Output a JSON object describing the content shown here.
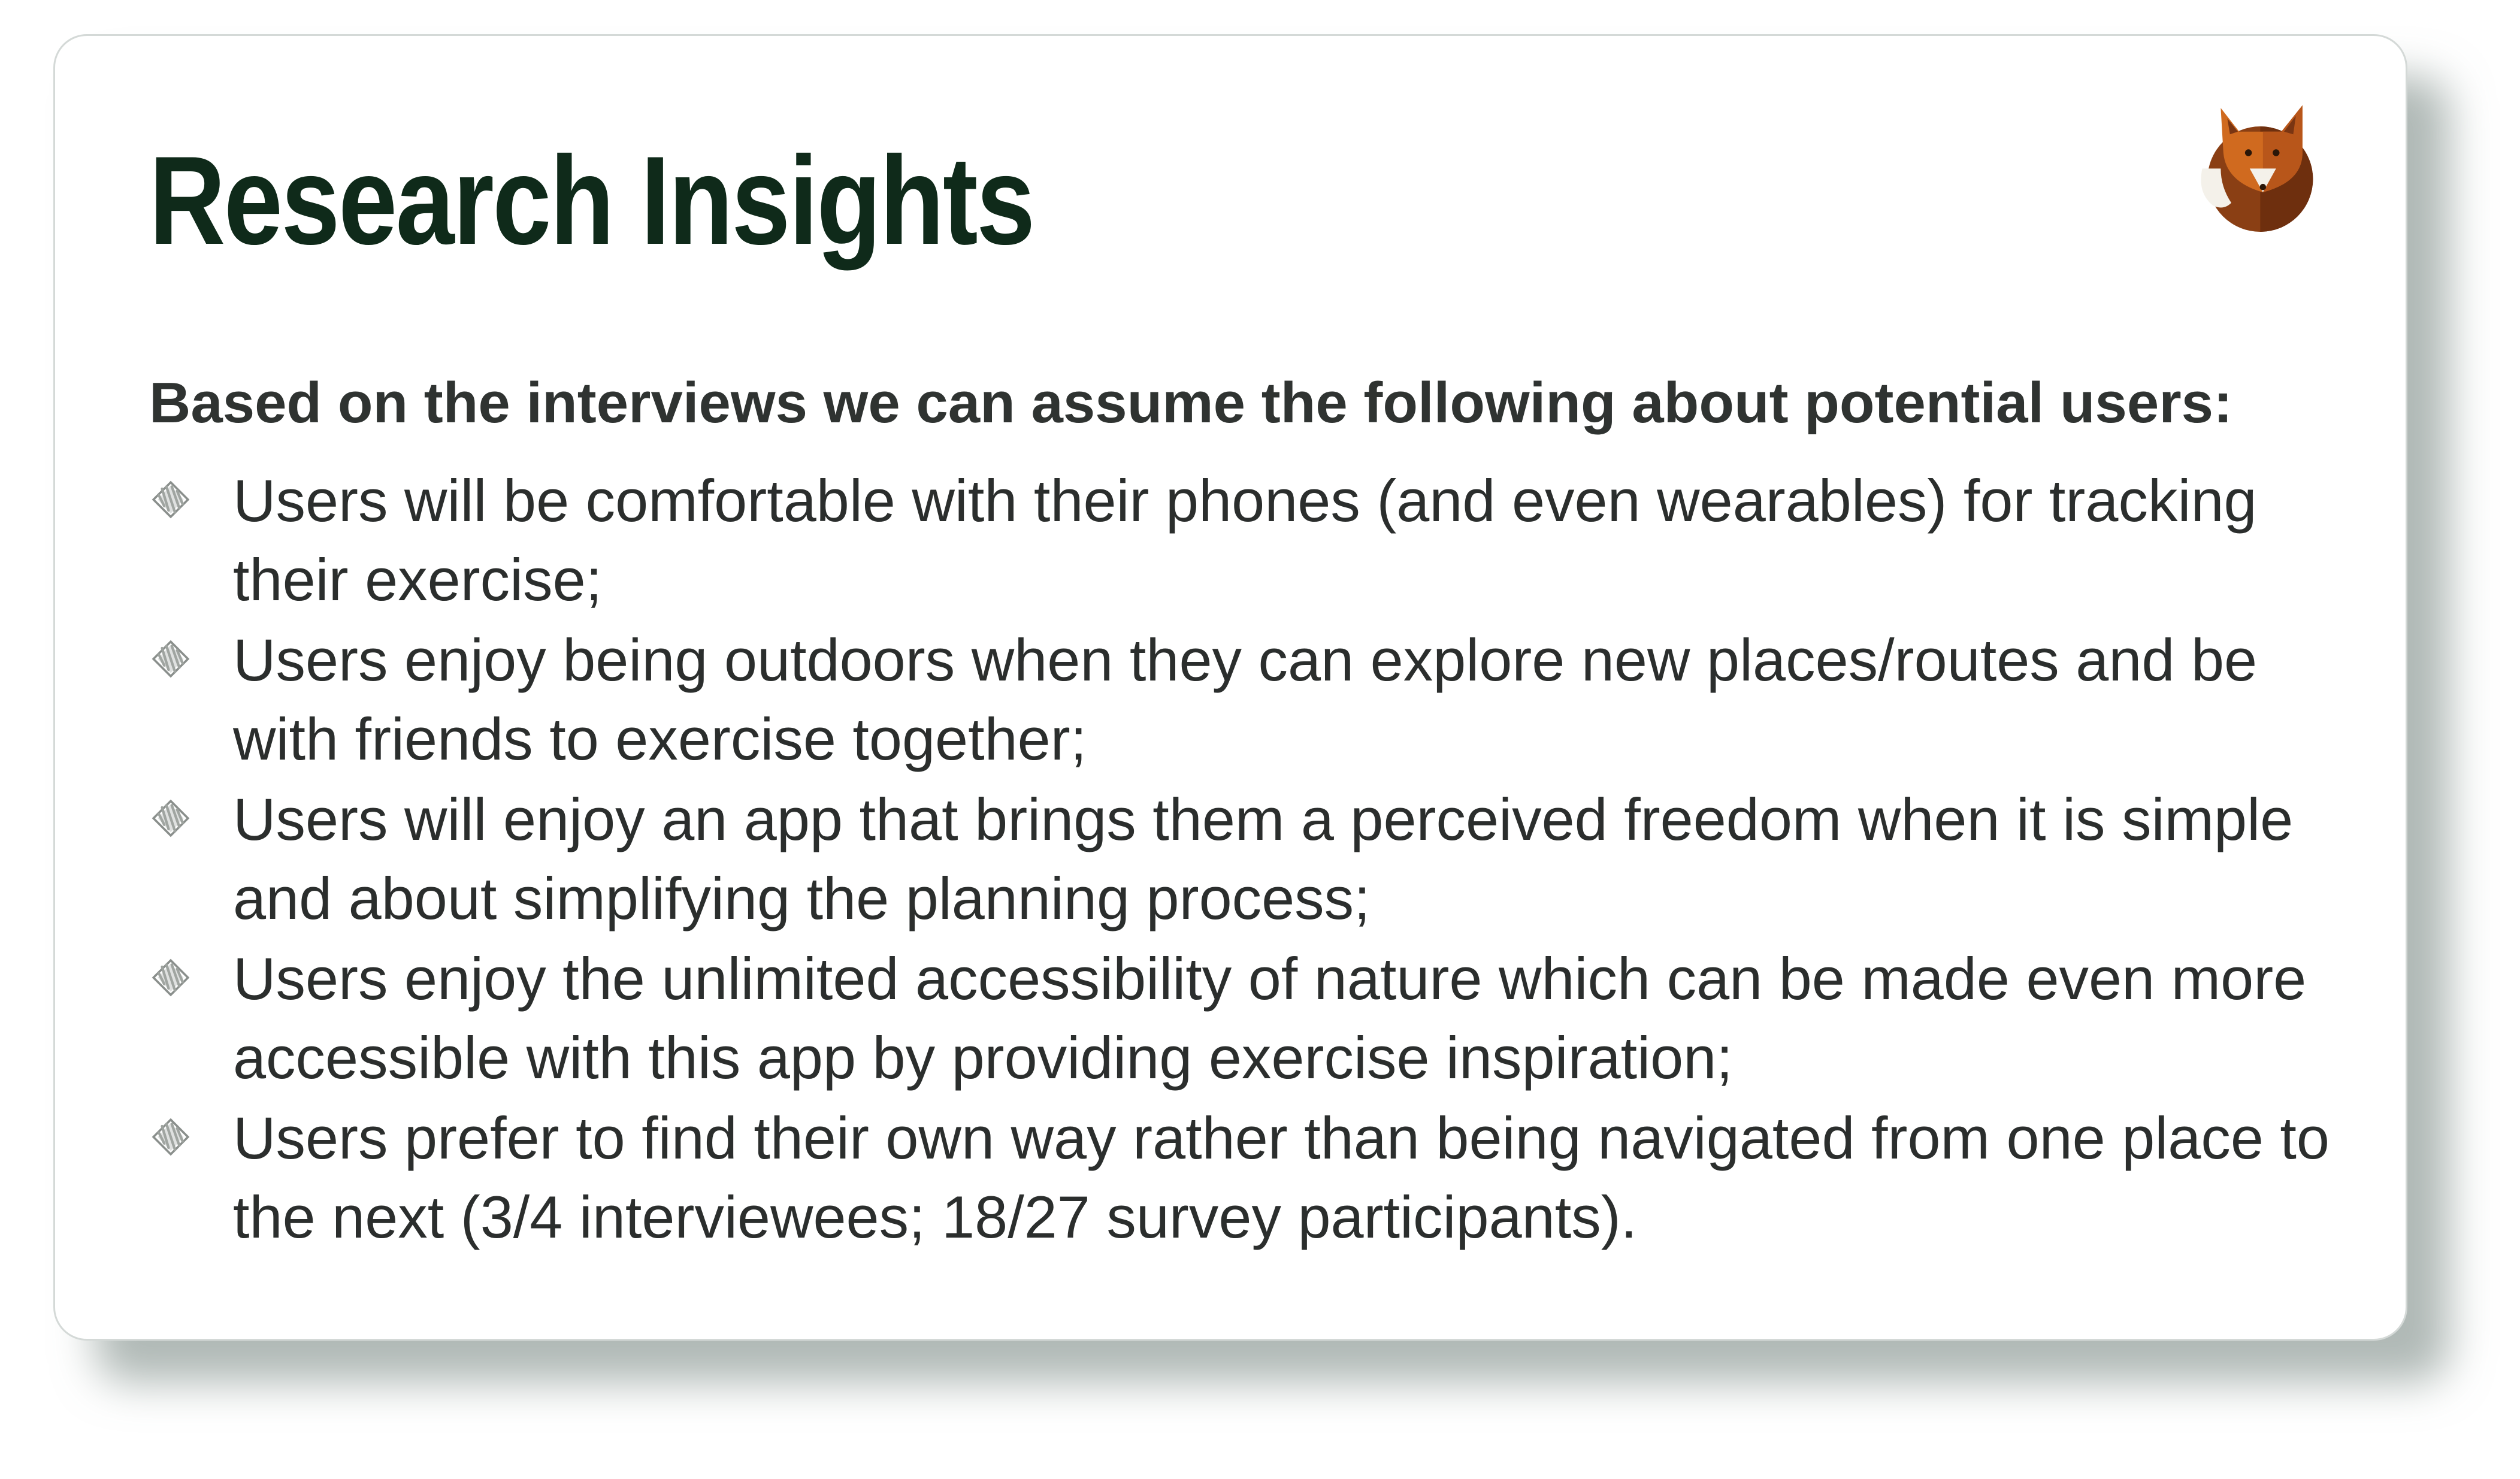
{
  "slide": {
    "title": "Research Insights",
    "subtitle": "Based on the interviews we can assume the following about potential users:",
    "logo_icon": "fox-logo-icon",
    "bullet_icon": "scribble-diamond-bullet-icon",
    "colors": {
      "title": "#0f2a1a",
      "body_text": "#2b2e2d",
      "fox_orange": "#c8611d",
      "fox_brown": "#7a3512",
      "bullet": "#8a8f8c"
    },
    "insights": [
      "Users will be comfortable with their phones (and even wearables) for tracking their exercise;",
      "Users enjoy being outdoors when they can explore new places/routes and be with friends to exercise together;",
      "Users will enjoy an app that brings them a perceived freedom when it is simple and about simplifying the planning process;",
      "Users enjoy the unlimited accessibility of nature which can be made even more accessible with this app by providing exercise inspiration;",
      "Users prefer to find their own way rather than being navigated from one place to the next (3/4 interviewees; 18/27 survey participants)."
    ]
  }
}
